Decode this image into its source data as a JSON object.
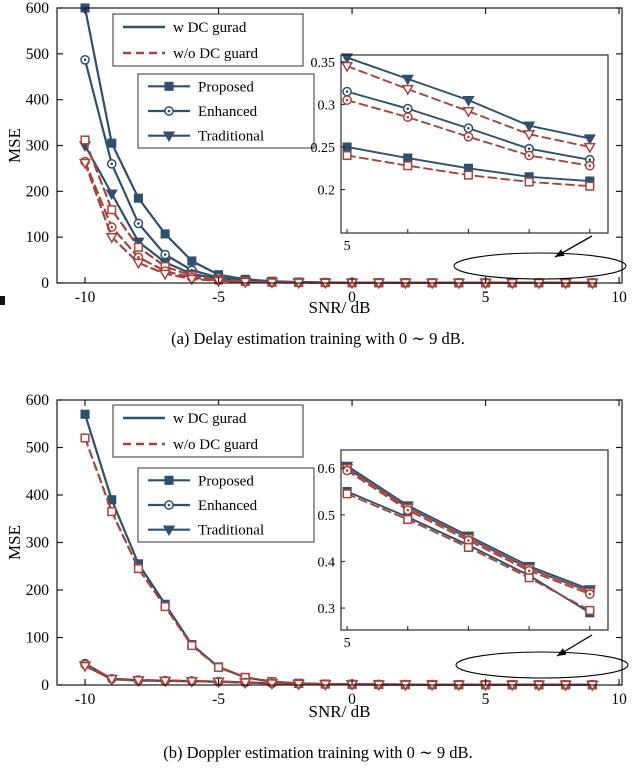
{
  "colors": {
    "blue": "#2f4f70",
    "red": "#a8433c",
    "axis": "#1a1a1a"
  },
  "chart_data": [
    {
      "type": "line",
      "caption": "(a) Delay estimation training with 0 ∼ 9 dB.",
      "xlabel": "SNR/ dB",
      "ylabel": "MSE",
      "xlim": [
        -11.05,
        10.11
      ],
      "ylim": [
        0,
        600
      ],
      "xticks": [
        -10,
        -5,
        0,
        5,
        10
      ],
      "yticks": [
        0,
        100,
        200,
        300,
        400,
        500,
        600
      ],
      "legend_lines": [
        {
          "label": "w DC gurad",
          "color": "blue",
          "dash": false
        },
        {
          "label": "w/o DC guard",
          "color": "red",
          "dash": true
        }
      ],
      "legend_markers": [
        {
          "label": "Proposed",
          "marker": "square"
        },
        {
          "label": "Enhanced",
          "marker": "circle"
        },
        {
          "label": "Traditional",
          "marker": "triangle"
        }
      ],
      "x": [
        -10,
        -9,
        -8,
        -7,
        -6,
        -5,
        -4,
        -3,
        -2,
        -1,
        0,
        1,
        2,
        3,
        4,
        5,
        6,
        7,
        8,
        9
      ],
      "series": [
        {
          "name": "Proposed w DC guard",
          "color": "blue",
          "dash": false,
          "marker": "square",
          "values": [
            605,
            305,
            185,
            107,
            48,
            18,
            8,
            3.8,
            2.0,
            1.2,
            0.75,
            0.6,
            0.48,
            0.38,
            0.31,
            0.25,
            0.237,
            0.225,
            0.215,
            0.21
          ]
        },
        {
          "name": "Enhanced w DC guard",
          "color": "blue",
          "dash": false,
          "marker": "circle",
          "values": [
            487,
            260,
            130,
            62,
            28,
            12,
            5.5,
            2.8,
            1.7,
            1.1,
            0.85,
            0.7,
            0.58,
            0.48,
            0.4,
            0.315,
            0.295,
            0.272,
            0.248,
            0.235
          ]
        },
        {
          "name": "Traditional w DC guard",
          "color": "blue",
          "dash": false,
          "marker": "triangle",
          "values": [
            300,
            195,
            90,
            45,
            20,
            9,
            4.5,
            2.5,
            1.5,
            1.0,
            0.85,
            0.72,
            0.6,
            0.52,
            0.44,
            0.355,
            0.33,
            0.305,
            0.275,
            0.26
          ]
        },
        {
          "name": "Proposed w/o DC guard",
          "color": "red",
          "dash": true,
          "marker": "square",
          "values": [
            312,
            160,
            78,
            36,
            16,
            7,
            3.2,
            1.6,
            0.95,
            0.65,
            0.5,
            0.42,
            0.35,
            0.3,
            0.27,
            0.24,
            0.228,
            0.217,
            0.209,
            0.204
          ]
        },
        {
          "name": "Enhanced w/o DC guard",
          "color": "red",
          "dash": true,
          "marker": "circle",
          "values": [
            265,
            122,
            56,
            26,
            12,
            5.5,
            2.6,
            1.5,
            1.0,
            0.75,
            0.6,
            0.5,
            0.43,
            0.37,
            0.33,
            0.305,
            0.285,
            0.262,
            0.24,
            0.228
          ]
        },
        {
          "name": "Traditional w/o DC guard",
          "color": "red",
          "dash": true,
          "marker": "triangle",
          "values": [
            262,
            100,
            44,
            20,
            9,
            4.5,
            2.4,
            1.4,
            0.95,
            0.72,
            0.6,
            0.52,
            0.45,
            0.4,
            0.37,
            0.345,
            0.318,
            0.292,
            0.265,
            0.25
          ]
        }
      ],
      "inset": {
        "xlim": [
          4.9,
          9.3
        ],
        "ylim": [
          0.149,
          0.358
        ],
        "xticks": [
          5
        ],
        "xminor": [
          5,
          6,
          7,
          8,
          9
        ],
        "yticks": [
          0.2,
          0.25,
          0.3,
          0.35
        ],
        "x": [
          5,
          6,
          7,
          8,
          9
        ],
        "series": [
          {
            "name": "Traditional w DC guard",
            "color": "blue",
            "dash": false,
            "marker": "triangle",
            "values": [
              0.355,
              0.33,
              0.305,
              0.275,
              0.26
            ]
          },
          {
            "name": "Enhanced w DC guard",
            "color": "blue",
            "dash": false,
            "marker": "circle",
            "values": [
              0.315,
              0.295,
              0.272,
              0.248,
              0.235
            ]
          },
          {
            "name": "Proposed w DC guard",
            "color": "blue",
            "dash": false,
            "marker": "square",
            "values": [
              0.25,
              0.237,
              0.225,
              0.215,
              0.21
            ]
          },
          {
            "name": "Traditional w/o DC guard",
            "color": "red",
            "dash": true,
            "marker": "triangle",
            "values": [
              0.345,
              0.318,
              0.292,
              0.265,
              0.25
            ]
          },
          {
            "name": "Enhanced w/o DC guard",
            "color": "red",
            "dash": true,
            "marker": "circle",
            "values": [
              0.305,
              0.285,
              0.262,
              0.24,
              0.228
            ]
          },
          {
            "name": "Proposed w/o DC guard",
            "color": "red",
            "dash": true,
            "marker": "square",
            "values": [
              0.24,
              0.228,
              0.217,
              0.209,
              0.204
            ]
          }
        ]
      }
    },
    {
      "type": "line",
      "caption": "(b) Doppler estimation training with 0 ∼ 9 dB.",
      "xlabel": "SNR/ dB",
      "ylabel": "MSE",
      "xlim": [
        -11.05,
        10.11
      ],
      "ylim": [
        0,
        600
      ],
      "xticks": [
        -10,
        -5,
        0,
        5,
        10
      ],
      "yticks": [
        0,
        100,
        200,
        300,
        400,
        500,
        600
      ],
      "legend_lines": [
        {
          "label": "w DC gurad",
          "color": "blue",
          "dash": false
        },
        {
          "label": "w/o DC guard",
          "color": "red",
          "dash": true
        }
      ],
      "legend_markers": [
        {
          "label": "Proposed",
          "marker": "square"
        },
        {
          "label": "Enhanced",
          "marker": "circle"
        },
        {
          "label": "Traditional",
          "marker": "triangle"
        }
      ],
      "x": [
        -10,
        -9,
        -8,
        -7,
        -6,
        -5,
        -4,
        -3,
        -2,
        -1,
        0,
        1,
        2,
        3,
        4,
        5,
        6,
        7,
        8,
        9
      ],
      "series": [
        {
          "name": "Proposed w DC guard",
          "color": "blue",
          "dash": false,
          "marker": "square",
          "values": [
            570,
            390,
            255,
            170,
            85,
            38,
            16,
            7,
            3.5,
            2.0,
            1.3,
            1.0,
            0.85,
            0.73,
            0.63,
            0.55,
            0.495,
            0.435,
            0.37,
            0.29
          ]
        },
        {
          "name": "Enhanced w DC guard",
          "color": "blue",
          "dash": false,
          "marker": "circle",
          "values": [
            45,
            13,
            10,
            9,
            8.2,
            7,
            5.5,
            3.5,
            2.3,
            1.7,
            1.35,
            1.1,
            0.95,
            0.82,
            0.7,
            0.6,
            0.515,
            0.45,
            0.385,
            0.335
          ]
        },
        {
          "name": "Traditional w DC guard",
          "color": "blue",
          "dash": false,
          "marker": "triangle",
          "values": [
            41,
            12,
            9.5,
            8.7,
            8,
            6.8,
            5.3,
            3.4,
            2.2,
            1.65,
            1.32,
            1.08,
            0.92,
            0.8,
            0.69,
            0.605,
            0.52,
            0.455,
            0.39,
            0.34
          ]
        },
        {
          "name": "Proposed w/o DC guard",
          "color": "red",
          "dash": true,
          "marker": "square",
          "values": [
            520,
            365,
            245,
            165,
            83,
            37,
            16,
            7,
            3.6,
            2.1,
            1.4,
            1.05,
            0.88,
            0.75,
            0.65,
            0.545,
            0.49,
            0.43,
            0.365,
            0.295
          ]
        },
        {
          "name": "Enhanced w/o DC guard",
          "color": "red",
          "dash": true,
          "marker": "circle",
          "values": [
            43,
            13.5,
            10.5,
            9.3,
            8.4,
            7.2,
            5.6,
            3.6,
            2.4,
            1.75,
            1.4,
            1.15,
            0.97,
            0.84,
            0.72,
            0.595,
            0.51,
            0.445,
            0.38,
            0.33
          ]
        },
        {
          "name": "Traditional w/o DC guard",
          "color": "red",
          "dash": true,
          "marker": "triangle",
          "values": [
            40,
            12.5,
            10,
            9,
            8.1,
            7,
            5.4,
            3.5,
            2.3,
            1.7,
            1.36,
            1.12,
            0.94,
            0.81,
            0.7,
            0.6,
            0.515,
            0.45,
            0.385,
            0.335
          ]
        }
      ],
      "inset": {
        "xlim": [
          4.9,
          9.3
        ],
        "ylim": [
          0.253,
          0.639
        ],
        "xticks": [
          5
        ],
        "xminor": [
          5,
          6,
          7,
          8,
          9
        ],
        "yticks": [
          0.3,
          0.4,
          0.5,
          0.6
        ],
        "x": [
          5,
          6,
          7,
          8,
          9
        ],
        "series": [
          {
            "name": "Traditional w DC guard",
            "color": "blue",
            "dash": false,
            "marker": "triangle",
            "values": [
              0.605,
              0.52,
              0.455,
              0.39,
              0.34
            ]
          },
          {
            "name": "Enhanced w DC guard",
            "color": "blue",
            "dash": false,
            "marker": "circle",
            "values": [
              0.6,
              0.515,
              0.45,
              0.385,
              0.335
            ]
          },
          {
            "name": "Proposed w DC guard",
            "color": "blue",
            "dash": false,
            "marker": "square",
            "values": [
              0.55,
              0.495,
              0.435,
              0.37,
              0.29
            ]
          },
          {
            "name": "Traditional w/o DC guard",
            "color": "red",
            "dash": true,
            "marker": "triangle",
            "values": [
              0.6,
              0.515,
              0.45,
              0.385,
              0.335
            ]
          },
          {
            "name": "Enhanced w/o DC guard",
            "color": "red",
            "dash": true,
            "marker": "circle",
            "values": [
              0.595,
              0.51,
              0.445,
              0.38,
              0.33
            ]
          },
          {
            "name": "Proposed w/o DC guard",
            "color": "red",
            "dash": true,
            "marker": "square",
            "values": [
              0.545,
              0.49,
              0.43,
              0.365,
              0.295
            ]
          }
        ]
      }
    }
  ]
}
